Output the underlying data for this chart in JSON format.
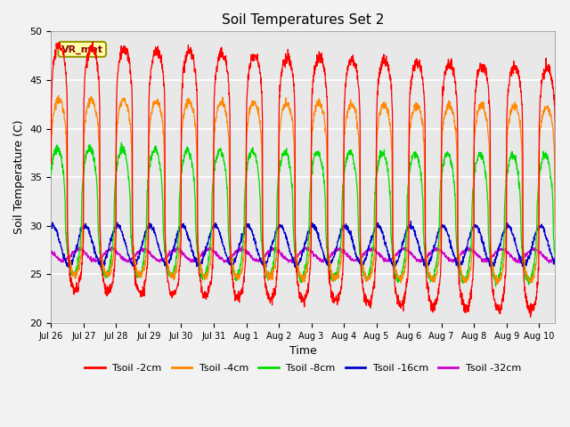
{
  "title": "Soil Temperatures Set 2",
  "xlabel": "Time",
  "ylabel": "Soil Temperature (C)",
  "ylim": [
    20,
    50
  ],
  "annotation": "VR_met",
  "bg_color": "#e8e8e8",
  "fig_bg_color": "#f2f2f2",
  "legend_entries": [
    "Tsoil -2cm",
    "Tsoil -4cm",
    "Tsoil -8cm",
    "Tsoil -16cm",
    "Tsoil -32cm"
  ],
  "line_colors": [
    "#ff0000",
    "#ff8800",
    "#00dd00",
    "#0000cc",
    "#cc00cc"
  ],
  "tick_labels": [
    "Jul 26",
    "Jul 27",
    "Jul 28",
    "Jul 29",
    "Jul 30",
    "Jul 31",
    "Aug 1",
    "Aug 2",
    "Aug 3",
    "Aug 4",
    "Aug 5",
    "Aug 6",
    "Aug 7",
    "Aug 8",
    "Aug 9",
    "Aug 10"
  ],
  "n_days": 15.5,
  "samples_per_day": 144
}
